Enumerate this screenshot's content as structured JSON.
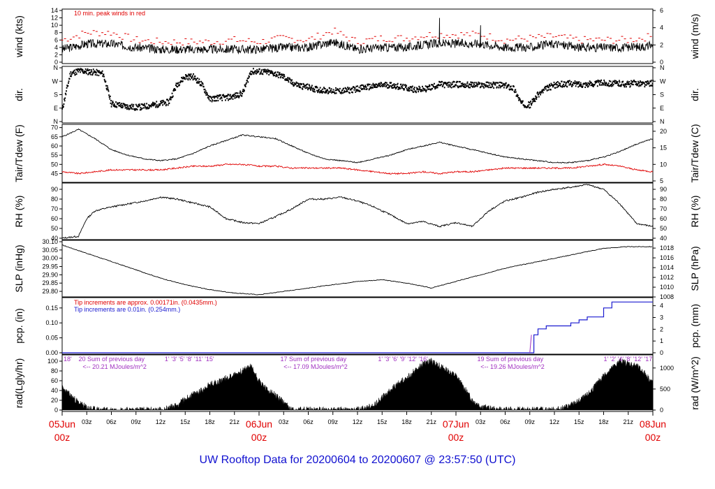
{
  "footer": {
    "title": "UW Rooftop Data for 20200604  to  20200607 @ 23:57:50  (UTC)"
  },
  "colors": {
    "red": "#e00000",
    "blue": "#1a1ad0",
    "purple": "#a030c0",
    "black": "#000000"
  },
  "x_axis": {
    "hour_labels": [
      "03z",
      "06z",
      "09z",
      "12z",
      "15z",
      "18z",
      "21z",
      "03z",
      "06z",
      "09z",
      "12z",
      "15z",
      "18z",
      "21z",
      "03z",
      "06z",
      "09z",
      "12z",
      "15z",
      "18z",
      "21z"
    ],
    "day_labels": [
      {
        "date": "05Jun",
        "time": "00z"
      },
      {
        "date": "06Jun",
        "time": "00z"
      },
      {
        "date": "07Jun",
        "time": "00z"
      },
      {
        "date": "08Jun",
        "time": "00z"
      }
    ]
  },
  "chart_data": [
    {
      "type": "line",
      "id": "wind",
      "left_label": "wind (kts)",
      "right_label": "wind (m/s)",
      "left_ticks": [
        "0",
        "2",
        "4",
        "6",
        "8",
        "10",
        "12",
        "14"
      ],
      "left_range": [
        0,
        14
      ],
      "right_ticks": [
        "0",
        "2",
        "4",
        "6"
      ],
      "right_range": [
        0,
        7.2
      ],
      "annotation": "10 min. peak winds in red",
      "series": [
        {
          "color": "#000000",
          "x": [
            0,
            3,
            6,
            9,
            12,
            15,
            18,
            21,
            24,
            27,
            30,
            33,
            36,
            39,
            42,
            45,
            48,
            51,
            54,
            57,
            60,
            63,
            66,
            69,
            72
          ],
          "y": [
            3.5,
            5,
            5,
            4,
            3.5,
            3.5,
            3.5,
            3.5,
            3.5,
            4,
            4,
            5.5,
            3.5,
            4,
            4,
            5,
            5,
            5,
            4,
            4,
            5,
            4,
            4,
            4,
            4.5
          ]
        },
        {
          "color": "#e00000",
          "x": [
            0,
            3,
            6,
            9,
            12,
            15,
            18,
            21,
            24,
            27,
            30,
            33,
            36,
            39,
            42,
            45,
            48,
            51,
            54,
            57,
            60,
            63,
            66,
            69,
            72
          ],
          "y": [
            6,
            8,
            8,
            6,
            5.5,
            5.5,
            5.5,
            6,
            5.5,
            6.5,
            6,
            8.5,
            5.5,
            6.5,
            6.5,
            7.5,
            7.5,
            7.5,
            6,
            6.5,
            7,
            6,
            6,
            6,
            7
          ]
        }
      ],
      "spikes": [
        {
          "x": 46,
          "y": 12
        },
        {
          "x": 51,
          "y": 10
        }
      ]
    },
    {
      "type": "scatter",
      "id": "dir",
      "left_label": "dir.",
      "right_label": "dir.",
      "left_ticks": [
        "N",
        "E",
        "S",
        "W",
        "N"
      ],
      "right_ticks": [
        "N",
        "E",
        "S",
        "W",
        "N"
      ],
      "range": [
        0,
        360
      ],
      "series": [
        {
          "color": "#000000",
          "x": [
            0,
            1,
            2,
            3,
            4,
            5,
            6,
            7,
            8,
            9,
            10,
            11,
            12,
            13,
            14,
            15,
            16,
            17,
            18,
            19,
            20,
            21,
            22,
            23,
            24,
            25,
            26,
            27,
            28,
            29,
            30,
            31,
            32,
            33,
            34,
            35,
            36,
            37,
            38,
            39,
            40,
            41,
            42,
            43,
            44,
            45,
            46,
            47,
            48,
            49,
            50,
            51,
            52,
            53,
            54,
            55,
            56,
            57,
            58,
            59,
            60,
            61,
            62,
            63,
            64,
            65,
            66,
            67,
            68,
            69,
            70,
            71,
            72
          ],
          "y": [
            80,
            320,
            340,
            335,
            330,
            320,
            120,
            110,
            100,
            95,
            100,
            110,
            120,
            130,
            250,
            300,
            300,
            250,
            150,
            160,
            160,
            170,
            190,
            335,
            335,
            330,
            320,
            300,
            260,
            240,
            230,
            215,
            210,
            205,
            205,
            210,
            220,
            230,
            235,
            245,
            245,
            235,
            225,
            215,
            215,
            230,
            250,
            245,
            250,
            245,
            245,
            245,
            245,
            245,
            240,
            225,
            120,
            110,
            180,
            220,
            245,
            250,
            255,
            250,
            250,
            255,
            260,
            255,
            255,
            250,
            260,
            250,
            260
          ]
        }
      ]
    },
    {
      "type": "line",
      "id": "temp",
      "left_label": "Tair/Tdew (F)",
      "right_label": "Tair/Tdew (C)",
      "left_ticks": [
        "45",
        "50",
        "55",
        "60",
        "65",
        "70"
      ],
      "left_range": [
        41,
        71
      ],
      "right_ticks": [
        "5",
        "10",
        "15",
        "20"
      ],
      "right_range": [
        5,
        21.7
      ],
      "series": [
        {
          "color": "#000000",
          "x": [
            0,
            2,
            4,
            6,
            8,
            10,
            12,
            14,
            16,
            18,
            20,
            22,
            24,
            26,
            28,
            30,
            32,
            34,
            36,
            38,
            40,
            42,
            44,
            46,
            48,
            50,
            52,
            54,
            56,
            58,
            60,
            62,
            64,
            66,
            68,
            70,
            72
          ],
          "y": [
            65,
            69,
            64,
            58,
            55,
            53,
            52,
            53,
            56,
            60,
            63,
            66,
            65,
            64,
            60,
            56,
            53,
            52,
            51,
            53,
            55,
            58,
            60,
            62,
            60,
            58,
            56,
            54,
            53,
            52,
            51,
            51,
            52,
            54,
            57,
            61,
            64
          ]
        },
        {
          "color": "#e00000",
          "x": [
            0,
            2,
            4,
            6,
            8,
            10,
            12,
            14,
            16,
            18,
            20,
            22,
            24,
            26,
            28,
            30,
            32,
            34,
            36,
            38,
            40,
            42,
            44,
            46,
            48,
            50,
            52,
            54,
            56,
            58,
            60,
            62,
            64,
            66,
            68,
            70,
            72
          ],
          "y": [
            46,
            45,
            46,
            47,
            47,
            47,
            47,
            48,
            49,
            49,
            50,
            50,
            49,
            49,
            48,
            48,
            48,
            48,
            47,
            46,
            45,
            45,
            46,
            45,
            46,
            46,
            47,
            48,
            48,
            48,
            48,
            48,
            49,
            50,
            49,
            47,
            46
          ]
        }
      ]
    },
    {
      "type": "line",
      "id": "rh",
      "left_label": "RH (%)",
      "right_label": "RH (%)",
      "ticks": [
        "40",
        "50",
        "60",
        "70",
        "80",
        "90"
      ],
      "range": [
        40,
        95
      ],
      "series": [
        {
          "color": "#000000",
          "x": [
            0,
            2,
            3,
            4,
            6,
            8,
            10,
            12,
            14,
            16,
            18,
            20,
            22,
            24,
            26,
            28,
            30,
            32,
            34,
            36,
            38,
            40,
            42,
            44,
            46,
            48,
            50,
            52,
            54,
            56,
            58,
            60,
            62,
            64,
            66,
            68,
            70,
            72
          ],
          "y": [
            40,
            42,
            60,
            68,
            72,
            75,
            78,
            82,
            80,
            76,
            72,
            60,
            56,
            55,
            62,
            70,
            80,
            80,
            82,
            78,
            72,
            64,
            55,
            57,
            52,
            56,
            52,
            68,
            78,
            82,
            87,
            90,
            92,
            95,
            90,
            75,
            55,
            52
          ]
        }
      ]
    },
    {
      "type": "line",
      "id": "slp",
      "left_label": "SLP (inHg)",
      "right_label": "SLP (hPa)",
      "left_ticks": [
        "29.80",
        "29.85",
        "29.90",
        "29.95",
        "30.00",
        "30.05",
        "30.10"
      ],
      "left_range": [
        29.775,
        30.1
      ],
      "right_ticks": [
        "1008",
        "1010",
        "1012",
        "1014",
        "1016",
        "1018"
      ],
      "right_range": [
        1008.3,
        1019.3
      ],
      "series": [
        {
          "color": "#000000",
          "x": [
            0,
            3,
            6,
            9,
            12,
            15,
            18,
            21,
            24,
            27,
            30,
            33,
            36,
            39,
            42,
            45,
            48,
            51,
            54,
            57,
            60,
            63,
            66,
            69,
            72
          ],
          "y": [
            30.08,
            30.03,
            29.98,
            29.93,
            29.88,
            29.84,
            29.81,
            29.79,
            29.78,
            29.8,
            29.82,
            29.84,
            29.86,
            29.87,
            29.85,
            29.82,
            29.86,
            29.9,
            29.94,
            29.97,
            30.0,
            30.03,
            30.06,
            30.07,
            30.07
          ]
        }
      ]
    },
    {
      "type": "line",
      "id": "pcp",
      "left_label": "pcp. (in)",
      "right_label": "pcp. (mm)",
      "left_ticks": [
        "0.00",
        "0.05",
        "0.10",
        "0.15"
      ],
      "left_range": [
        0,
        0.18
      ],
      "right_ticks": [
        "0",
        "1",
        "2",
        "3",
        "4"
      ],
      "right_range": [
        0,
        4.572
      ],
      "annotations": [
        "Tip increments are approx. 0.00171in. (0.0435mm.)",
        "Tip increments are 0.01in. (0.254mm.)"
      ],
      "series": [
        {
          "color": "#1a1ad0",
          "x": [
            0,
            57,
            57.5,
            58,
            59,
            60,
            61,
            62,
            63,
            64,
            65,
            66,
            67,
            68,
            72
          ],
          "y": [
            0,
            0,
            0.06,
            0.08,
            0.09,
            0.09,
            0.09,
            0.1,
            0.11,
            0.12,
            0.12,
            0.15,
            0.17,
            0.17,
            0.17
          ]
        }
      ]
    },
    {
      "type": "area",
      "id": "rad",
      "left_label": "rad(Lgly/hr)",
      "right_label": "rad (W/m^2)",
      "left_ticks": [
        "0",
        "20",
        "40",
        "60",
        "80",
        "100"
      ],
      "left_range": [
        0,
        110
      ],
      "right_ticks": [
        "0",
        "500",
        "1000"
      ],
      "right_range": [
        0,
        1277
      ],
      "annotations": [
        {
          "day_x": 0,
          "hours": "18'  ",
          "sum_label": "20 Sum of previous day",
          "total": "<-- 20.21 MJoules/m^2"
        },
        {
          "day_x": 24,
          "hours": "1'  '3'  '5'  '8'  '11'  '15'  ",
          "sum_label": "17 Sum of previous day",
          "total": "<-- 17.09 MJoules/m^2"
        },
        {
          "day_x": 48,
          "hours": "1'  '3'  '6'  '9'  '12'  '16'  ",
          "sum_label": "19  Sum of previous day",
          "total": "<-- 19.26 MJoules/m^2"
        },
        {
          "day_x": 72,
          "hours": "1'  '2'  '4'  '8'  '12'  '17",
          "sum_label": "",
          "total": ""
        }
      ],
      "series": [
        {
          "color": "#000000",
          "x": [
            0,
            1,
            2,
            3,
            4,
            5,
            12,
            13,
            14,
            15,
            16,
            17,
            18,
            19,
            20,
            21,
            22,
            23,
            24,
            25,
            26,
            27,
            28,
            36,
            37,
            38,
            39,
            40,
            41,
            42,
            43,
            44,
            45,
            46,
            47,
            48,
            49,
            50,
            51,
            52,
            53,
            54,
            60,
            61,
            62,
            63,
            64,
            65,
            66,
            67,
            68,
            69,
            70,
            71,
            72
          ],
          "y": [
            45,
            30,
            15,
            5,
            1,
            0,
            0,
            4,
            10,
            22,
            32,
            40,
            52,
            58,
            65,
            72,
            80,
            90,
            60,
            40,
            30,
            15,
            0,
            0,
            3,
            10,
            25,
            40,
            55,
            65,
            80,
            95,
            100,
            90,
            80,
            70,
            45,
            20,
            8,
            3,
            0,
            0,
            0,
            3,
            10,
            18,
            30,
            50,
            70,
            85,
            100,
            95,
            90,
            75,
            55
          ]
        }
      ]
    }
  ]
}
